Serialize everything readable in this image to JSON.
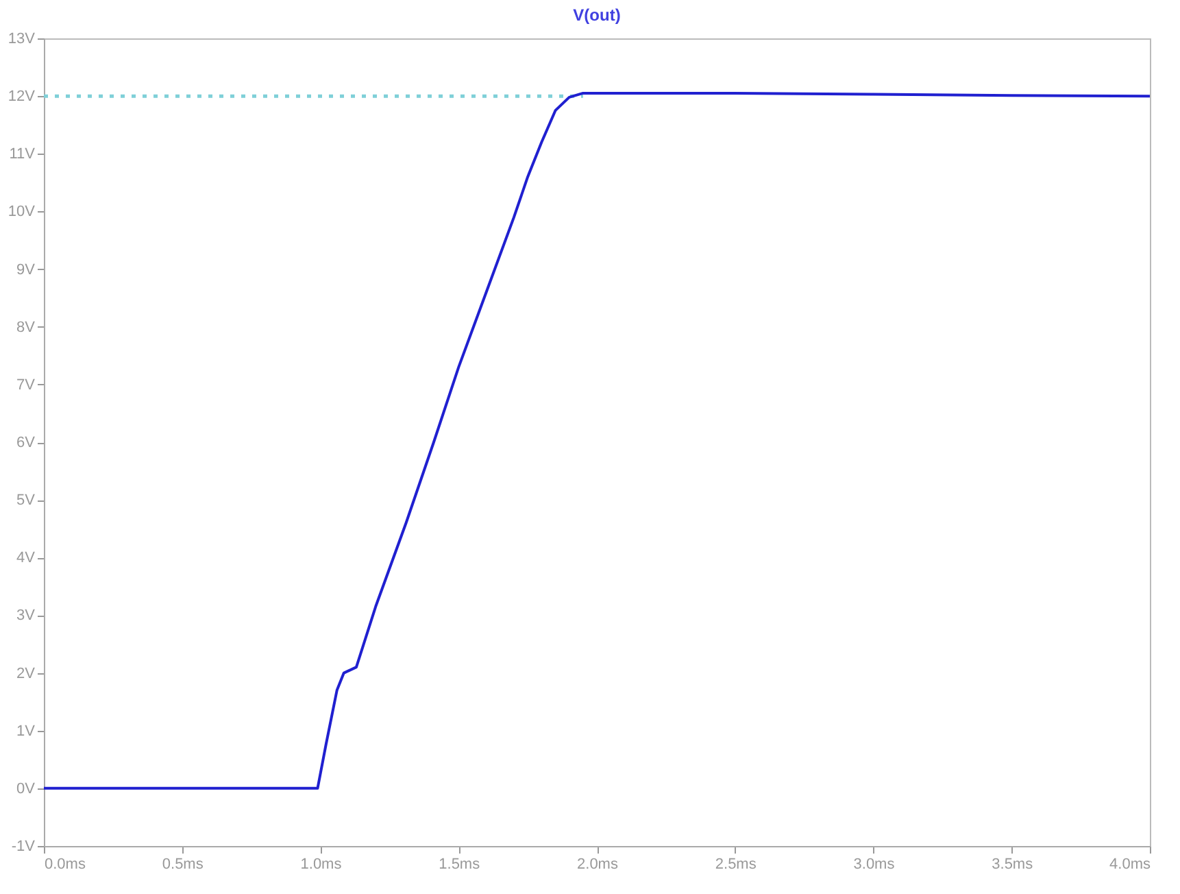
{
  "chart_data": {
    "type": "line",
    "title": "V(out)",
    "xlim": [
      0,
      4
    ],
    "ylim": [
      -1,
      13
    ],
    "xticks": [
      {
        "value": 0,
        "label": "0.0ms"
      },
      {
        "value": 0.5,
        "label": "0.5ms"
      },
      {
        "value": 1,
        "label": "1.0ms"
      },
      {
        "value": 1.5,
        "label": "1.5ms"
      },
      {
        "value": 2,
        "label": "2.0ms"
      },
      {
        "value": 2.5,
        "label": "2.5ms"
      },
      {
        "value": 3,
        "label": "3.0ms"
      },
      {
        "value": 3.5,
        "label": "3.5ms"
      },
      {
        "value": 4,
        "label": "4.0ms"
      }
    ],
    "yticks": [
      {
        "value": -1,
        "label": "-1V"
      },
      {
        "value": 0,
        "label": "0V"
      },
      {
        "value": 1,
        "label": "1V"
      },
      {
        "value": 2,
        "label": "2V"
      },
      {
        "value": 3,
        "label": "3V"
      },
      {
        "value": 4,
        "label": "4V"
      },
      {
        "value": 5,
        "label": "5V"
      },
      {
        "value": 6,
        "label": "6V"
      },
      {
        "value": 7,
        "label": "7V"
      },
      {
        "value": 8,
        "label": "8V"
      },
      {
        "value": 9,
        "label": "9V"
      },
      {
        "value": 10,
        "label": "10V"
      },
      {
        "value": 11,
        "label": "11V"
      },
      {
        "value": 12,
        "label": "12V"
      },
      {
        "value": 13,
        "label": "13V"
      }
    ],
    "grid": false,
    "series": [
      {
        "color": "#7fd0d8",
        "line_style": "dotted",
        "x": [
          0,
          1.95
        ],
        "values": [
          12,
          12
        ]
      },
      {
        "color": "#2020d0",
        "line_style": "solid",
        "x": [
          0,
          0.97,
          0.99,
          1.02,
          1.06,
          1.085,
          1.13,
          1.2,
          1.31,
          1.41,
          1.5,
          1.6,
          1.7,
          1.75,
          1.8,
          1.85,
          1.9,
          1.95,
          2.5,
          3.0,
          3.5,
          4.0
        ],
        "values": [
          0,
          0,
          0,
          0.75,
          1.7,
          2.0,
          2.1,
          3.15,
          4.6,
          6.0,
          7.3,
          8.6,
          9.9,
          10.6,
          11.2,
          11.75,
          11.98,
          12.05,
          12.05,
          12.03,
          12.01,
          12.0
        ]
      }
    ]
  }
}
